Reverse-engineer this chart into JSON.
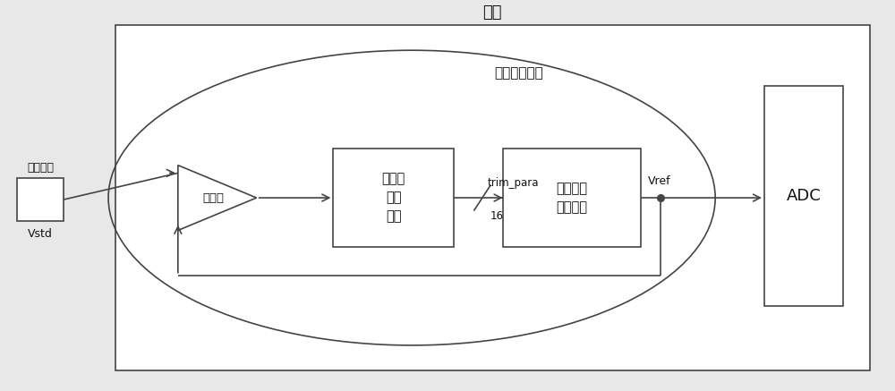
{
  "fig_width": 10.0,
  "fig_height": 4.37,
  "bg_color": "#e8e8e8",
  "box_color": "#ffffff",
  "line_color": "#444444",
  "text_color": "#111111",
  "chip_label": "芯片",
  "bist_label": "内建测试部分",
  "test_pin_label": "测试引脚",
  "vstd_label": "Vstd",
  "comparator_label": "比较器",
  "calib_label": "校准値\n产生\n模块",
  "ref_label": "参考电压\n产生电路",
  "adc_label": "ADC",
  "trim_label": "trim_para",
  "bus_label": "16",
  "vref_label": "Vref",
  "lw": 1.2
}
